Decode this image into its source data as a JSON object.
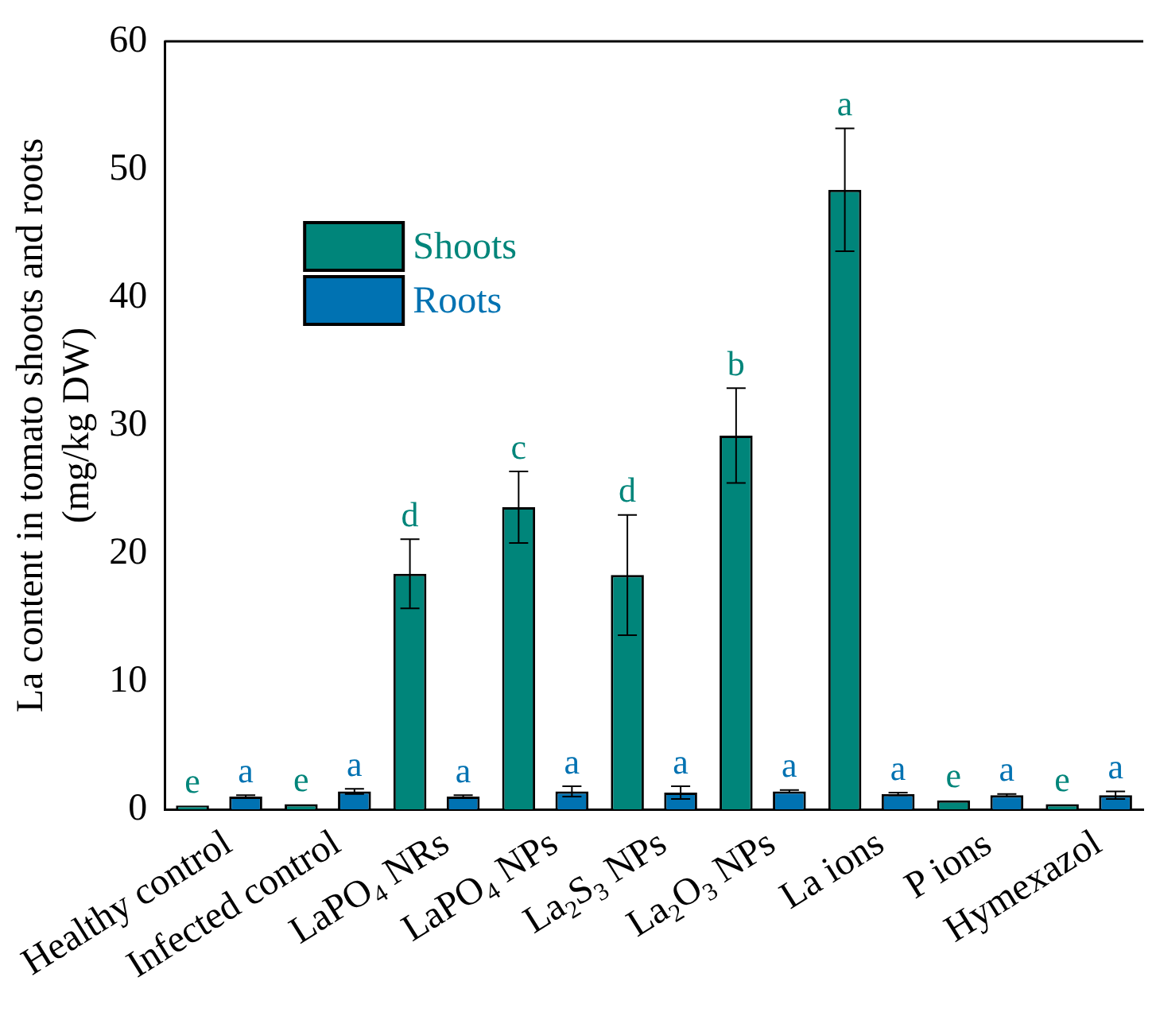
{
  "chart_data": {
    "type": "bar",
    "ylabel": "La content in tomato shoots and roots\n(mg/kg DW)",
    "categories": [
      "Healthy control",
      "Infected control",
      "LaPO$_{4}$ NRs",
      "LaPO$_{4}$ NPs",
      "La$_{2}$S$_{3}$ NPs",
      "La$_{2}$O$_{3}$ NPs",
      "La ions",
      "P ions",
      "Hymexazol"
    ],
    "series": [
      {
        "name": "Shoots",
        "color": "#00857a",
        "values": [
          0.3,
          0.4,
          18.4,
          23.6,
          18.3,
          29.2,
          48.4,
          0.7,
          0.4
        ],
        "errors": [
          null,
          null,
          2.7,
          2.8,
          4.7,
          3.7,
          4.8,
          null,
          null
        ],
        "value_labels": [
          "e",
          "e",
          "d",
          "c",
          "d",
          "b",
          "a",
          "e",
          "e"
        ]
      },
      {
        "name": "Roots",
        "color": "#0072b2",
        "values": [
          1.0,
          1.4,
          1.0,
          1.4,
          1.3,
          1.4,
          1.2,
          1.1,
          1.1
        ],
        "errors": [
          0.1,
          0.2,
          0.1,
          0.4,
          0.5,
          0.1,
          0.1,
          0.1,
          0.3
        ],
        "value_labels": [
          "a",
          "a",
          "a",
          "a",
          "a",
          "a",
          "a",
          "a",
          "a"
        ]
      }
    ],
    "ylim": [
      0,
      60
    ],
    "yticks": [
      0,
      10,
      20,
      30,
      40,
      50,
      60
    ],
    "grid": false,
    "legend": "top left"
  }
}
